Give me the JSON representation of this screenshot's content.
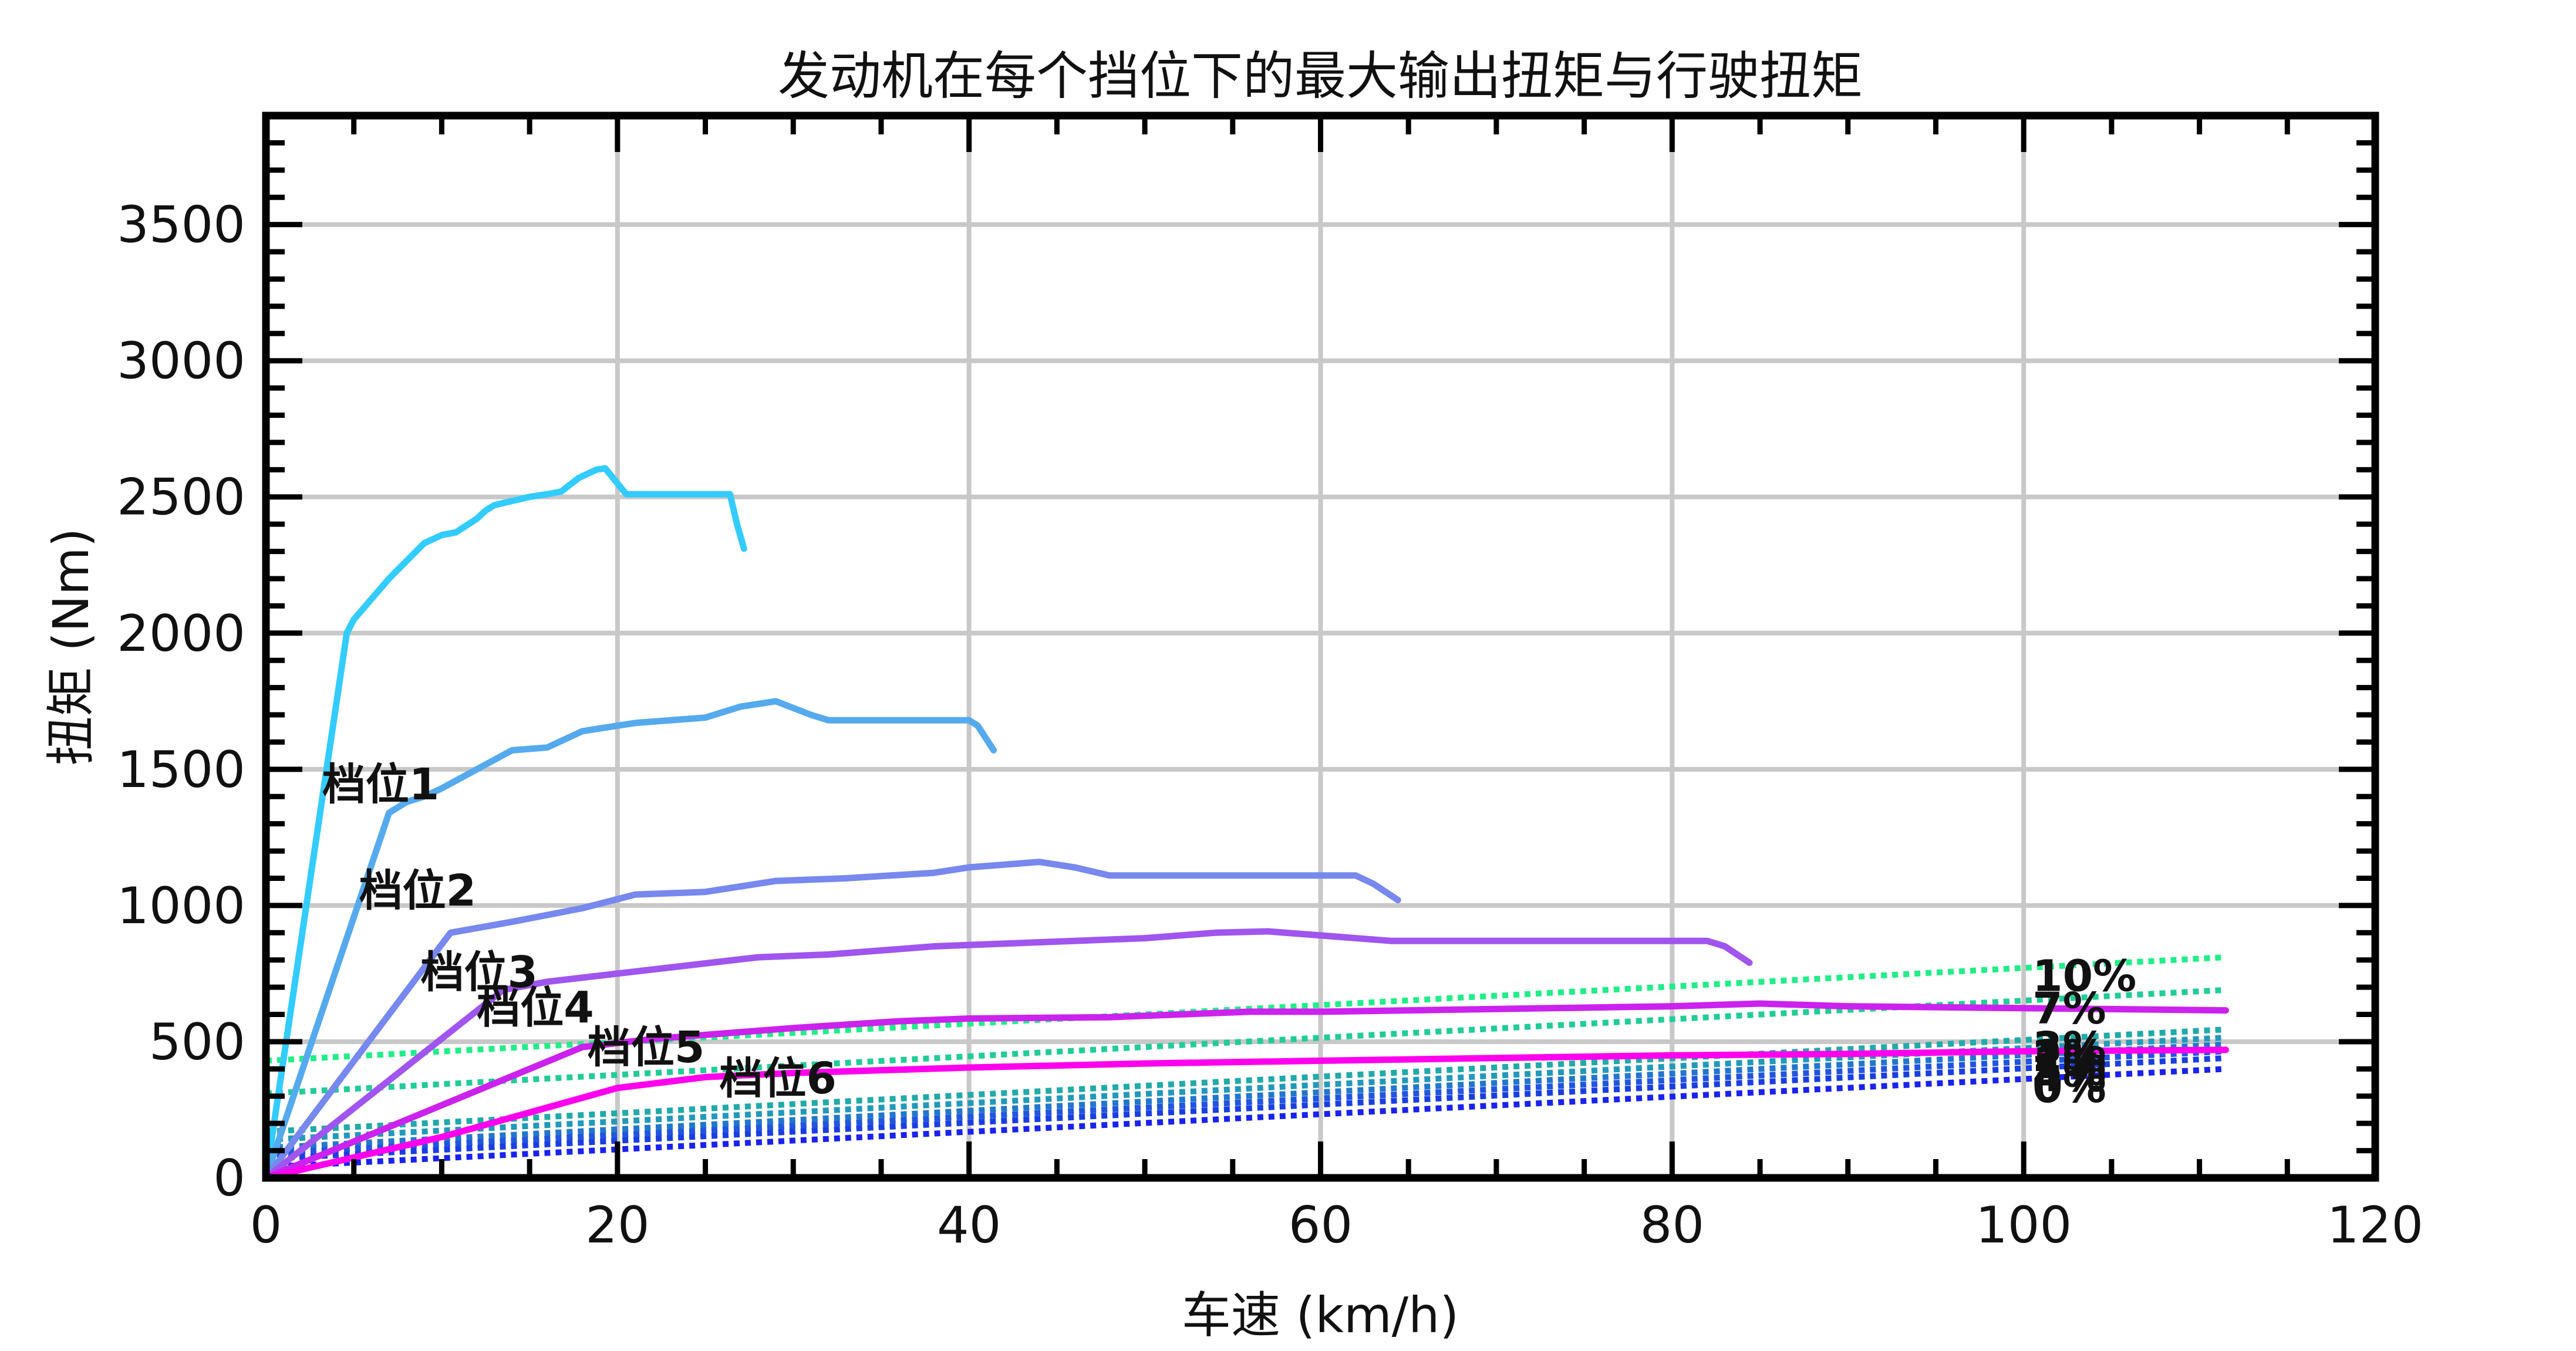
{
  "chart_data": {
    "type": "line",
    "title": "发动机在每个挡位下的最大输出扭矩与行驶扭矩",
    "xlabel": "车速 (km/h)",
    "ylabel": "扭矩 (Nm)",
    "xlim": [
      0,
      120
    ],
    "ylim": [
      0,
      3900
    ],
    "xticks": [
      0,
      20,
      40,
      60,
      80,
      100,
      120
    ],
    "yticks": [
      0,
      500,
      1000,
      1500,
      2000,
      2500,
      3000,
      3500
    ],
    "grid": true,
    "gear_series": [
      {
        "name": "档位1",
        "label": "档位1",
        "color": "#33ccff",
        "label_at": [
          3.2,
          1390
        ],
        "points": [
          [
            0,
            0
          ],
          [
            4.6,
            2000
          ],
          [
            5.0,
            2050
          ],
          [
            7,
            2200
          ],
          [
            9,
            2330
          ],
          [
            10,
            2360
          ],
          [
            10.8,
            2370
          ],
          [
            12,
            2420
          ],
          [
            12.5,
            2450
          ],
          [
            13,
            2470
          ],
          [
            15,
            2500
          ],
          [
            16,
            2510
          ],
          [
            16.8,
            2520
          ],
          [
            17,
            2530
          ],
          [
            17.8,
            2570
          ],
          [
            18.8,
            2600
          ],
          [
            19.3,
            2605
          ],
          [
            20.5,
            2510
          ],
          [
            26.4,
            2510
          ],
          [
            26.8,
            2400
          ],
          [
            27.2,
            2310
          ]
        ]
      },
      {
        "name": "档位2",
        "label": "档位2",
        "color": "#55aaee",
        "label_at": [
          5.3,
          1000
        ],
        "points": [
          [
            0,
            0
          ],
          [
            7,
            1340
          ],
          [
            8,
            1380
          ],
          [
            9,
            1400
          ],
          [
            10,
            1430
          ],
          [
            12,
            1500
          ],
          [
            14,
            1570
          ],
          [
            16,
            1580
          ],
          [
            18,
            1640
          ],
          [
            19,
            1650
          ],
          [
            21,
            1670
          ],
          [
            25,
            1690
          ],
          [
            26,
            1710
          ],
          [
            27,
            1730
          ],
          [
            29,
            1750
          ],
          [
            31,
            1700
          ],
          [
            32,
            1680
          ],
          [
            40,
            1680
          ],
          [
            40.5,
            1660
          ],
          [
            41.4,
            1570
          ]
        ]
      },
      {
        "name": "档位3",
        "label": "档位3",
        "color": "#7788ee",
        "label_at": [
          8.8,
          700
        ],
        "points": [
          [
            0,
            0
          ],
          [
            10.5,
            900
          ],
          [
            14,
            940
          ],
          [
            18,
            990
          ],
          [
            21,
            1040
          ],
          [
            25,
            1050
          ],
          [
            29,
            1090
          ],
          [
            33,
            1100
          ],
          [
            38,
            1120
          ],
          [
            40,
            1140
          ],
          [
            42,
            1150
          ],
          [
            44,
            1160
          ],
          [
            46,
            1140
          ],
          [
            48,
            1110
          ],
          [
            50,
            1110
          ],
          [
            62,
            1110
          ],
          [
            63,
            1080
          ],
          [
            64.4,
            1020
          ]
        ]
      },
      {
        "name": "档位4",
        "label": "档位4",
        "color": "#a055ee",
        "label_at": [
          12.0,
          570
        ],
        "points": [
          [
            0,
            0
          ],
          [
            13.5,
            690
          ],
          [
            16,
            720
          ],
          [
            20,
            750
          ],
          [
            24,
            780
          ],
          [
            28,
            810
          ],
          [
            32,
            820
          ],
          [
            36,
            840
          ],
          [
            38,
            850
          ],
          [
            42,
            860
          ],
          [
            46,
            870
          ],
          [
            50,
            880
          ],
          [
            54,
            900
          ],
          [
            57,
            905
          ],
          [
            60,
            890
          ],
          [
            64,
            870
          ],
          [
            82,
            870
          ],
          [
            83,
            850
          ],
          [
            84.4,
            790
          ]
        ]
      },
      {
        "name": "档位5",
        "label": "档位5",
        "color": "#cc22ee",
        "label_at": [
          18.3,
          425
        ],
        "points": [
          [
            0,
            0
          ],
          [
            18,
            480
          ],
          [
            22,
            510
          ],
          [
            26,
            530
          ],
          [
            30,
            550
          ],
          [
            36,
            575
          ],
          [
            40,
            585
          ],
          [
            48,
            590
          ],
          [
            52,
            600
          ],
          [
            56,
            610
          ],
          [
            60,
            610
          ],
          [
            70,
            620
          ],
          [
            80,
            630
          ],
          [
            85,
            640
          ],
          [
            90,
            630
          ],
          [
            111.5,
            615
          ]
        ]
      },
      {
        "name": "档位6",
        "label": "档位6",
        "color": "#ff00ee",
        "label_at": [
          25.8,
          310
        ],
        "points": [
          [
            0,
            0
          ],
          [
            10,
            150
          ],
          [
            20,
            330
          ],
          [
            25,
            370
          ],
          [
            30,
            385
          ],
          [
            40,
            405
          ],
          [
            50,
            420
          ],
          [
            60,
            430
          ],
          [
            70,
            440
          ],
          [
            80,
            450
          ],
          [
            90,
            455
          ],
          [
            100,
            465
          ],
          [
            111.5,
            470
          ]
        ]
      }
    ],
    "resistance_series": [
      {
        "name": "10%",
        "label": "10%",
        "color": "#22ee88",
        "start": 430,
        "end": 810
      },
      {
        "name": "7%",
        "label": "7%",
        "color": "#22cc99",
        "start": 310,
        "end": 690
      },
      {
        "name": "3%",
        "label": "3%",
        "color": "#22aaaa",
        "start": 170,
        "end": 545
      },
      {
        "name": "2%",
        "label": "2%",
        "color": "#2299bb",
        "start": 140,
        "end": 515
      },
      {
        "name": "1%",
        "label": "1%",
        "color": "#2277cc",
        "start": 110,
        "end": 490
      },
      {
        "name": "5%",
        "label": "5%",
        "color": "#2255dd",
        "start": 90,
        "end": 465
      },
      {
        "name": "4%",
        "label": "4%",
        "color": "#1a3fe0",
        "start": 70,
        "end": 440
      },
      {
        "name": "0%",
        "label": "0%",
        "color": "#1a22ee",
        "start": 40,
        "end": 400
      }
    ],
    "resistance_x_end": 111.5,
    "resistance_label_x": 100.5
  }
}
